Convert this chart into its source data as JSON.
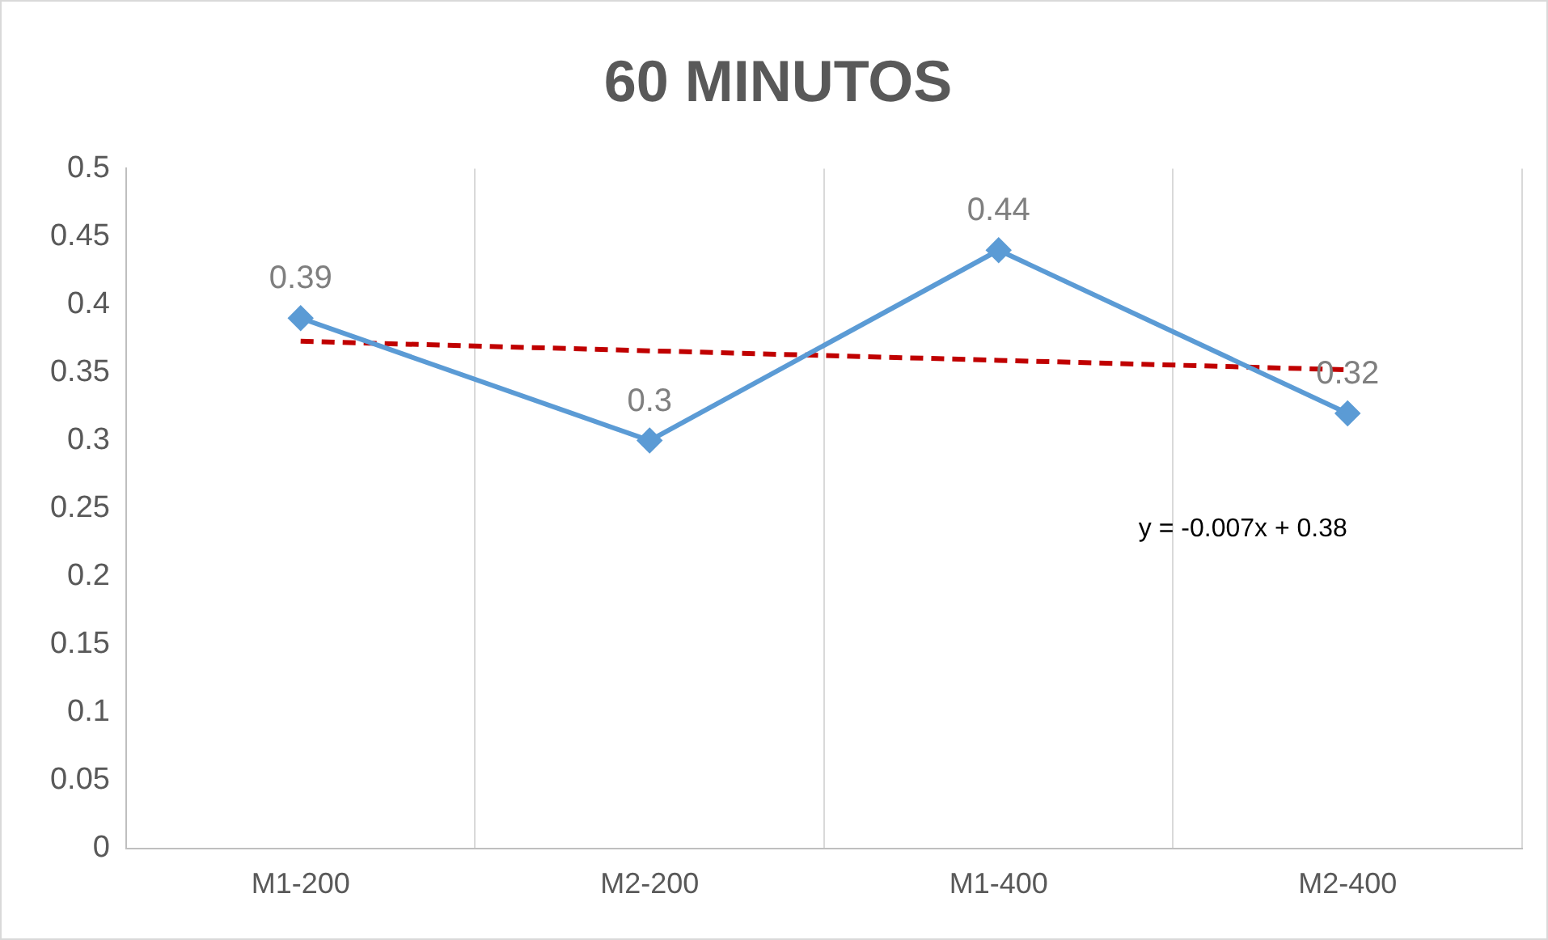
{
  "chart_data": {
    "type": "line",
    "title": "60 MINUTOS",
    "categories": [
      "M1-200",
      "M2-200",
      "M1-400",
      "M2-400"
    ],
    "series": [
      {
        "color": "#5b9bd5",
        "values": [
          0.39,
          0.3,
          0.44,
          0.32
        ],
        "value_labels": [
          "0.39",
          "0.3",
          "0.44",
          "0.32"
        ],
        "marker": "diamond",
        "line_style": "solid"
      },
      {
        "color": "#c00000",
        "values": [
          0.373,
          0.366,
          0.359,
          0.352
        ],
        "marker": "none",
        "line_style": "dashed"
      }
    ],
    "ylim": [
      0,
      0.5
    ],
    "yticks": [
      0,
      0.05,
      0.1,
      0.15,
      0.2,
      0.25,
      0.3,
      0.35,
      0.4,
      0.45,
      0.5
    ],
    "grid": "x",
    "legend": false,
    "annotations": [
      "y = -0.007x + 0.38"
    ]
  }
}
